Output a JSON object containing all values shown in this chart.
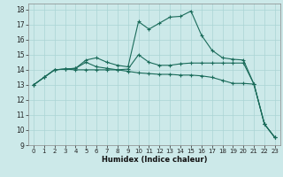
{
  "xlabel": "Humidex (Indice chaleur)",
  "xlim": [
    -0.5,
    23.5
  ],
  "ylim": [
    9,
    18.4
  ],
  "xticks": [
    0,
    1,
    2,
    3,
    4,
    5,
    6,
    7,
    8,
    9,
    10,
    11,
    12,
    13,
    14,
    15,
    16,
    17,
    18,
    19,
    20,
    21,
    22,
    23
  ],
  "yticks": [
    9,
    10,
    11,
    12,
    13,
    14,
    15,
    16,
    17,
    18
  ],
  "bg_color": "#cce9e9",
  "line_color": "#1a6b5a",
  "grid_color": "#aad4d4",
  "lines": [
    [
      13.0,
      13.5,
      14.0,
      14.05,
      14.1,
      14.65,
      14.8,
      14.5,
      14.3,
      14.2,
      17.2,
      16.7,
      17.1,
      17.5,
      17.55,
      17.9,
      16.3,
      15.3,
      14.8,
      14.7,
      14.65,
      13.05,
      10.4,
      9.5
    ],
    [
      13.0,
      13.5,
      14.0,
      14.05,
      14.1,
      14.5,
      14.2,
      14.1,
      14.0,
      14.05,
      15.0,
      14.5,
      14.3,
      14.3,
      14.4,
      14.45,
      14.45,
      14.45,
      14.45,
      14.45,
      14.45,
      13.05,
      10.4,
      9.5
    ],
    [
      13.0,
      13.5,
      14.0,
      14.05,
      14.0,
      14.0,
      14.0,
      14.0,
      14.0,
      13.9,
      13.8,
      13.75,
      13.7,
      13.7,
      13.65,
      13.65,
      13.6,
      13.5,
      13.3,
      13.1,
      13.1,
      13.05,
      10.4,
      9.5
    ]
  ]
}
